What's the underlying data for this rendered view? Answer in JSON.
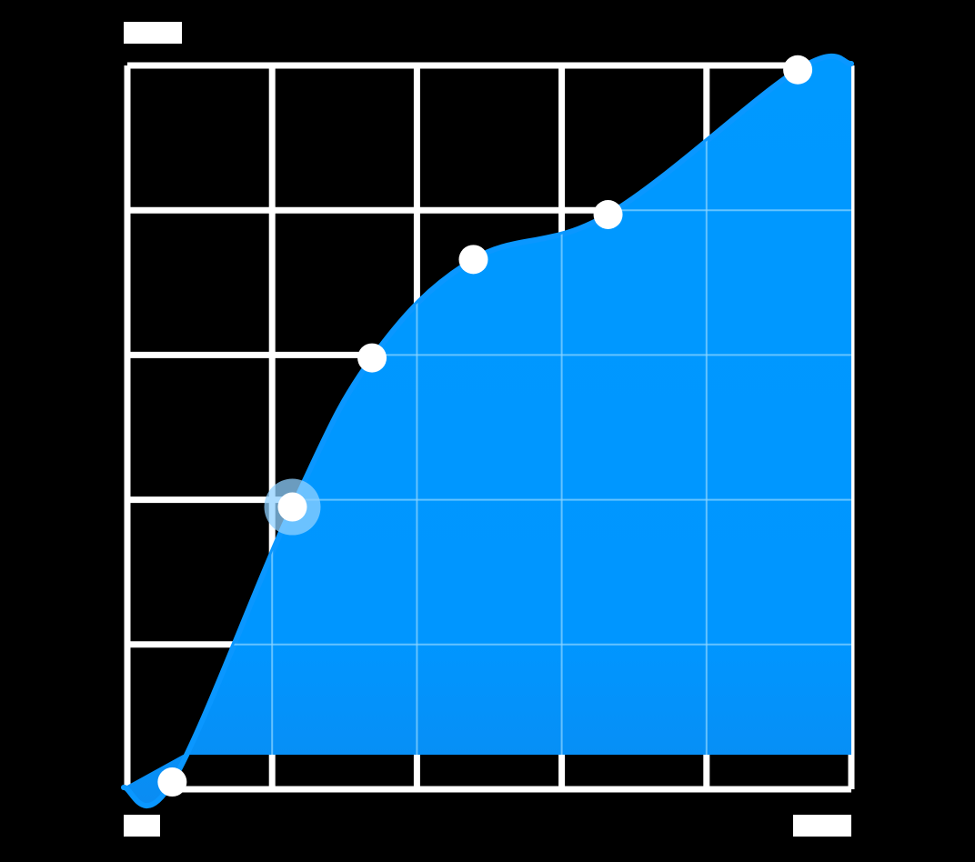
{
  "chart_data": {
    "type": "area",
    "title": "",
    "xlabel": "",
    "ylabel": "",
    "xlim": [
      0,
      5
    ],
    "ylim": [
      0,
      5
    ],
    "grid": true,
    "colors": {
      "background": "#000000",
      "grid": "#ffffff",
      "fill_top": "#0099ff",
      "fill_bottom": "#0b8ef5",
      "line": "#0a97ff",
      "marker": "#ffffff",
      "highlight_ring": "#8fd0ff"
    },
    "series": [
      {
        "points": [
          {
            "x": 0.31,
            "y": 0.05
          },
          {
            "x": 1.14,
            "y": 1.95
          },
          {
            "x": 1.69,
            "y": 2.98
          },
          {
            "x": 2.39,
            "y": 3.66
          },
          {
            "x": 3.32,
            "y": 3.97
          },
          {
            "x": 4.63,
            "y": 4.97
          }
        ],
        "highlighted_index": 1
      }
    ]
  }
}
